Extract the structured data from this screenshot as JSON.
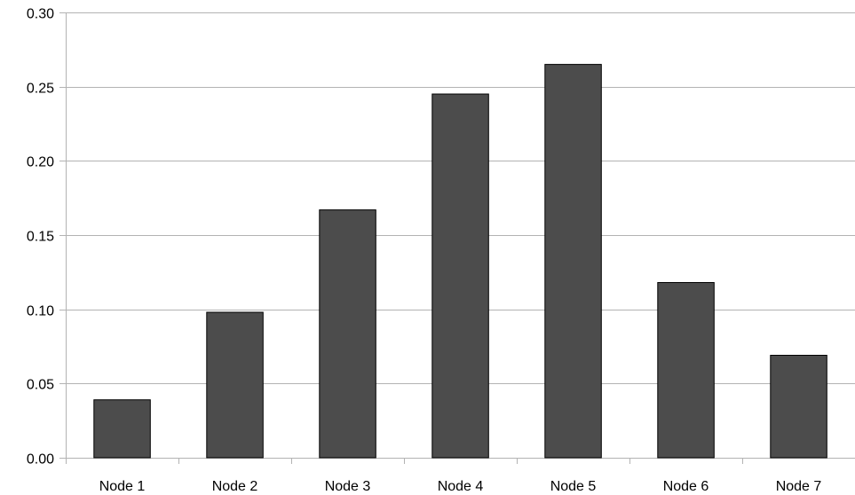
{
  "chart_data": {
    "type": "bar",
    "categories": [
      "Node 1",
      "Node 2",
      "Node 3",
      "Node 4",
      "Node 5",
      "Node 6",
      "Node 7"
    ],
    "values": [
      0.039,
      0.098,
      0.167,
      0.245,
      0.265,
      0.118,
      0.069
    ],
    "ylim": [
      0,
      0.3
    ],
    "yticks": [
      "0.00",
      "0.05",
      "0.10",
      "0.15",
      "0.20",
      "0.25",
      "0.30"
    ],
    "title": "",
    "xlabel": "",
    "ylabel": "",
    "grid": true,
    "legend": "none",
    "bar_color": "#4c4c4c"
  }
}
